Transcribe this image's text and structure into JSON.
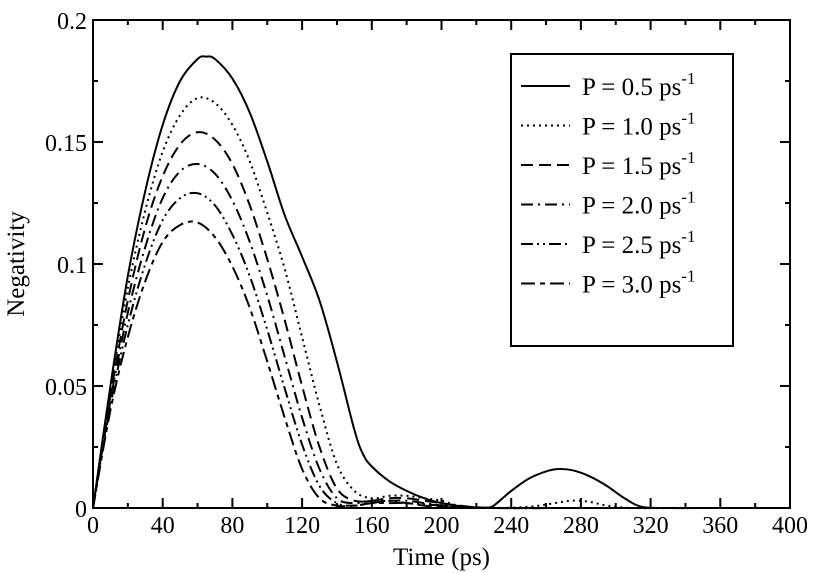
{
  "chart_data": {
    "type": "line",
    "title": "",
    "xlabel": "Time (ps)",
    "ylabel": "Negativity",
    "xlim": [
      0,
      400
    ],
    "ylim": [
      0,
      0.2
    ],
    "xticks": [
      0,
      40,
      80,
      120,
      160,
      200,
      240,
      280,
      320,
      360,
      400
    ],
    "xtick_labels": [
      "0",
      "40",
      "80",
      "120",
      "160",
      "200",
      "240",
      "280",
      "320",
      "360",
      "400"
    ],
    "yticks": [
      0,
      0.05,
      0.1,
      0.15,
      0.2
    ],
    "ytick_labels": [
      "0",
      "0.05",
      "0.1",
      "0.15",
      "0.2"
    ],
    "grid": false,
    "legend_position": "top-right",
    "series": [
      {
        "name": "P = 0.5 ps-1",
        "label_main": "P = 0.5 ps",
        "label_sup": "-1",
        "dash": "solid",
        "x": [
          0,
          10,
          20,
          30,
          40,
          50,
          60,
          65,
          70,
          80,
          90,
          100,
          110,
          120,
          130,
          140,
          150,
          155,
          160,
          170,
          180,
          190,
          200,
          210,
          220,
          225,
          230,
          240,
          250,
          260,
          267,
          275,
          285,
          295,
          305,
          315,
          330,
          360,
          400
        ],
        "y": [
          0,
          0.05,
          0.095,
          0.13,
          0.157,
          0.175,
          0.184,
          0.185,
          0.184,
          0.176,
          0.162,
          0.142,
          0.12,
          0.103,
          0.085,
          0.06,
          0.032,
          0.022,
          0.017,
          0.011,
          0.007,
          0.004,
          0.002,
          0.0008,
          0.0002,
          0,
          0.001,
          0.007,
          0.012,
          0.015,
          0.016,
          0.0155,
          0.013,
          0.009,
          0.004,
          0.0005,
          0,
          0,
          0
        ]
      },
      {
        "name": "P = 1.0 ps-1",
        "label_main": "P = 1.0 ps",
        "label_sup": "-1",
        "dash": "dotted",
        "x": [
          0,
          10,
          20,
          30,
          40,
          50,
          60,
          70,
          80,
          90,
          100,
          110,
          120,
          130,
          140,
          150,
          160,
          170,
          180,
          190,
          200,
          210,
          230,
          250,
          265,
          275,
          285,
          295,
          310,
          340,
          400
        ],
        "y": [
          0,
          0.048,
          0.09,
          0.122,
          0.146,
          0.161,
          0.168,
          0.166,
          0.157,
          0.142,
          0.121,
          0.098,
          0.07,
          0.042,
          0.018,
          0.007,
          0.004,
          0.005,
          0.005,
          0.004,
          0.003,
          0.001,
          0,
          0.0005,
          0.002,
          0.003,
          0.0025,
          0.001,
          0,
          0,
          0
        ]
      },
      {
        "name": "P = 1.5 ps-1",
        "label_main": "P = 1.5 ps",
        "label_sup": "-1",
        "dash": "dashed",
        "x": [
          0,
          10,
          20,
          30,
          40,
          50,
          60,
          70,
          80,
          90,
          100,
          110,
          120,
          130,
          140,
          150,
          160,
          170,
          180,
          190,
          200,
          210,
          230,
          280,
          400
        ],
        "y": [
          0,
          0.046,
          0.085,
          0.115,
          0.136,
          0.149,
          0.154,
          0.151,
          0.141,
          0.124,
          0.102,
          0.077,
          0.05,
          0.025,
          0.008,
          0.003,
          0.003,
          0.004,
          0.004,
          0.003,
          0.002,
          0.001,
          0,
          0,
          0
        ]
      },
      {
        "name": "P = 2.0 ps-1",
        "label_main": "P = 2.0 ps",
        "label_sup": "-1",
        "dash": "dashdot",
        "x": [
          0,
          10,
          20,
          30,
          40,
          50,
          60,
          70,
          80,
          90,
          100,
          110,
          120,
          130,
          140,
          150,
          160,
          170,
          180,
          190,
          200,
          210,
          230,
          280,
          400
        ],
        "y": [
          0,
          0.044,
          0.08,
          0.107,
          0.127,
          0.138,
          0.141,
          0.137,
          0.126,
          0.109,
          0.087,
          0.062,
          0.037,
          0.016,
          0.004,
          0.002,
          0.003,
          0.003,
          0.003,
          0.002,
          0.001,
          0.0005,
          0,
          0,
          0
        ]
      },
      {
        "name": "P = 2.5 ps-1",
        "label_main": "P = 2.5 ps",
        "label_sup": "-1",
        "dash": "dashdotdot",
        "x": [
          0,
          10,
          20,
          30,
          40,
          50,
          60,
          70,
          80,
          90,
          100,
          110,
          120,
          130,
          140,
          150,
          160,
          170,
          180,
          190,
          200,
          210,
          230,
          280,
          400
        ],
        "y": [
          0,
          0.042,
          0.075,
          0.1,
          0.118,
          0.127,
          0.129,
          0.124,
          0.112,
          0.095,
          0.073,
          0.049,
          0.026,
          0.009,
          0.002,
          0.001,
          0.002,
          0.003,
          0.002,
          0.0015,
          0.001,
          0.0003,
          0,
          0,
          0
        ]
      },
      {
        "name": "P = 3.0 ps-1",
        "label_main": "P = 3.0 ps",
        "label_sup": "-1",
        "dash": "dashdash",
        "x": [
          0,
          10,
          20,
          30,
          40,
          50,
          60,
          70,
          80,
          90,
          100,
          110,
          120,
          130,
          140,
          150,
          160,
          170,
          180,
          190,
          200,
          210,
          230,
          280,
          400
        ],
        "y": [
          0,
          0.04,
          0.07,
          0.093,
          0.109,
          0.116,
          0.117,
          0.111,
          0.099,
          0.082,
          0.06,
          0.037,
          0.016,
          0.004,
          0.001,
          0.001,
          0.002,
          0.002,
          0.002,
          0.001,
          0.0005,
          0.0002,
          0,
          0,
          0
        ]
      }
    ]
  }
}
